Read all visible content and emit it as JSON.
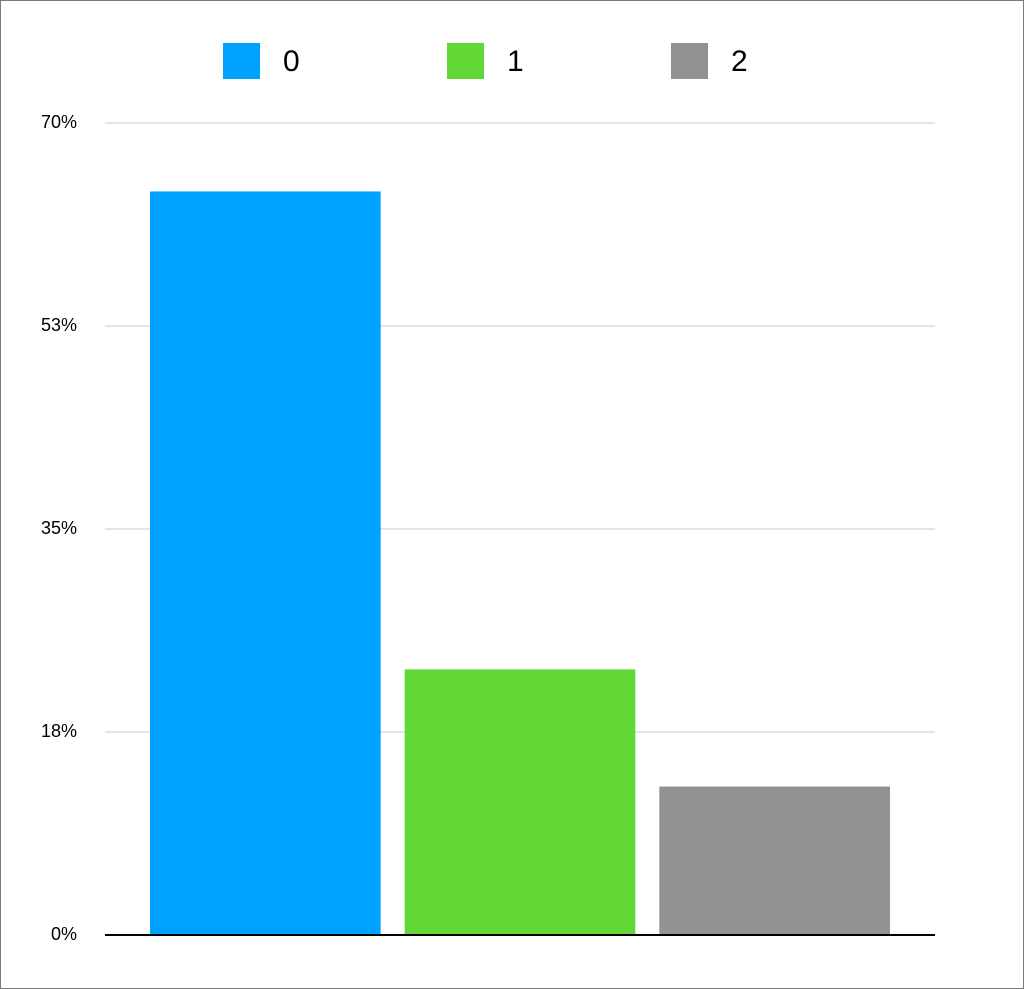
{
  "chart_data": {
    "type": "bar",
    "categories": [
      null
    ],
    "series": [
      {
        "name": "0",
        "color": "#00a2ff",
        "values": [
          64.1
        ]
      },
      {
        "name": "1",
        "color": "#61d836",
        "values": [
          22.9
        ]
      },
      {
        "name": "2",
        "color": "#929292",
        "values": [
          12.8
        ]
      }
    ],
    "ylim": [
      0,
      70
    ],
    "yticks": [
      {
        "value": 0,
        "label": "0%"
      },
      {
        "value": 17.5,
        "label": "18%"
      },
      {
        "value": 35,
        "label": "35%"
      },
      {
        "value": 52.5,
        "label": "53%"
      },
      {
        "value": 70,
        "label": "70%"
      }
    ],
    "grid": true,
    "legend": "top"
  }
}
